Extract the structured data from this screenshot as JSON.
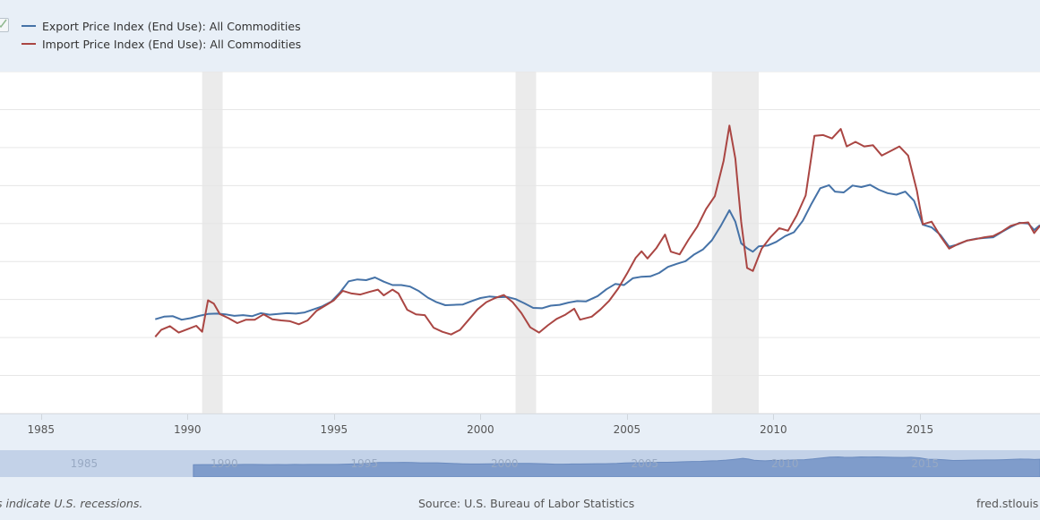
{
  "legend": {
    "toggle_icon": "checkbox-checked-icon",
    "items": [
      {
        "label": "Export Price Index (End Use): All Commodities",
        "color": "#4572a7"
      },
      {
        "label": "Import Price Index (End Use): All Commodities",
        "color": "#aa4643"
      }
    ]
  },
  "footer": {
    "note": "s indicate U.S. recessions.",
    "source": "Source: U.S. Bureau of Labor Statistics",
    "site": "fred.stlouis"
  },
  "navigator": {
    "ticks": [
      "1985",
      "1990",
      "1995",
      "2000",
      "2005",
      "2010",
      "2015"
    ],
    "fill_color": "#7f9ccb",
    "band_color": "#c3d2e8"
  },
  "chart_data": {
    "type": "line",
    "title": "",
    "xlabel": "",
    "ylabel": "",
    "x_ticks": [
      "1985",
      "1990",
      "1995",
      "2000",
      "2005",
      "2010",
      "2015"
    ],
    "xlim": [
      1983.6,
      2019.1
    ],
    "ylim": [
      70,
      160
    ],
    "y_gridlines": [
      70,
      80,
      90,
      100,
      110,
      120,
      130,
      140,
      150,
      160
    ],
    "grid": true,
    "legend_position": "top-left",
    "recessions": [
      [
        1990.5,
        1991.2
      ],
      [
        2001.2,
        2001.9
      ],
      [
        2007.9,
        2009.5
      ]
    ],
    "recession_color": "#ebebeb",
    "series": [
      {
        "name": "Export Price Index (End Use): All Commodities",
        "color": "#4572a7",
        "points": [
          [
            1988.9,
            94.8
          ],
          [
            1989.2,
            95.5
          ],
          [
            1989.5,
            95.6
          ],
          [
            1989.8,
            94.7
          ],
          [
            1990.1,
            95.1
          ],
          [
            1990.4,
            95.7
          ],
          [
            1990.7,
            96.2
          ],
          [
            1991.0,
            96.3
          ],
          [
            1991.3,
            96.1
          ],
          [
            1991.6,
            95.7
          ],
          [
            1991.9,
            95.9
          ],
          [
            1992.2,
            95.6
          ],
          [
            1992.5,
            96.4
          ],
          [
            1992.8,
            96.0
          ],
          [
            1993.1,
            96.2
          ],
          [
            1993.4,
            96.4
          ],
          [
            1993.7,
            96.3
          ],
          [
            1994.0,
            96.6
          ],
          [
            1994.3,
            97.4
          ],
          [
            1994.6,
            98.2
          ],
          [
            1994.9,
            99.4
          ],
          [
            1995.2,
            101.8
          ],
          [
            1995.5,
            104.8
          ],
          [
            1995.8,
            105.3
          ],
          [
            1996.1,
            105.1
          ],
          [
            1996.4,
            105.8
          ],
          [
            1996.7,
            104.7
          ],
          [
            1997.0,
            103.8
          ],
          [
            1997.3,
            103.8
          ],
          [
            1997.6,
            103.4
          ],
          [
            1997.9,
            102.2
          ],
          [
            1998.2,
            100.5
          ],
          [
            1998.5,
            99.3
          ],
          [
            1998.8,
            98.5
          ],
          [
            1999.1,
            98.6
          ],
          [
            1999.4,
            98.7
          ],
          [
            1999.7,
            99.6
          ],
          [
            2000.0,
            100.4
          ],
          [
            2000.3,
            100.8
          ],
          [
            2000.6,
            100.6
          ],
          [
            2000.9,
            100.7
          ],
          [
            2001.2,
            100.1
          ],
          [
            2001.5,
            99.0
          ],
          [
            2001.8,
            97.8
          ],
          [
            2002.1,
            97.7
          ],
          [
            2002.4,
            98.4
          ],
          [
            2002.7,
            98.6
          ],
          [
            2003.0,
            99.2
          ],
          [
            2003.3,
            99.6
          ],
          [
            2003.6,
            99.5
          ],
          [
            2004.0,
            100.9
          ],
          [
            2004.3,
            102.7
          ],
          [
            2004.6,
            104.1
          ],
          [
            2004.9,
            103.8
          ],
          [
            2005.2,
            105.6
          ],
          [
            2005.5,
            106.0
          ],
          [
            2005.8,
            106.1
          ],
          [
            2006.1,
            107.0
          ],
          [
            2006.4,
            108.6
          ],
          [
            2006.7,
            109.4
          ],
          [
            2007.0,
            110.1
          ],
          [
            2007.3,
            111.9
          ],
          [
            2007.6,
            113.2
          ],
          [
            2007.9,
            115.6
          ],
          [
            2008.2,
            119.3
          ],
          [
            2008.5,
            123.5
          ],
          [
            2008.7,
            120.5
          ],
          [
            2008.9,
            114.8
          ],
          [
            2009.1,
            113.5
          ],
          [
            2009.3,
            112.6
          ],
          [
            2009.5,
            114.0
          ],
          [
            2009.8,
            114.2
          ],
          [
            2010.1,
            115.2
          ],
          [
            2010.4,
            116.7
          ],
          [
            2010.7,
            117.7
          ],
          [
            2011.0,
            120.7
          ],
          [
            2011.3,
            125.2
          ],
          [
            2011.6,
            129.3
          ],
          [
            2011.9,
            130.1
          ],
          [
            2012.1,
            128.4
          ],
          [
            2012.4,
            128.2
          ],
          [
            2012.7,
            130.0
          ],
          [
            2013.0,
            129.6
          ],
          [
            2013.3,
            130.2
          ],
          [
            2013.6,
            128.9
          ],
          [
            2013.9,
            128.0
          ],
          [
            2014.2,
            127.6
          ],
          [
            2014.5,
            128.4
          ],
          [
            2014.8,
            126.0
          ],
          [
            2015.1,
            119.7
          ],
          [
            2015.4,
            119.0
          ],
          [
            2015.7,
            117.0
          ],
          [
            2016.0,
            113.9
          ],
          [
            2016.3,
            114.5
          ],
          [
            2016.6,
            115.5
          ],
          [
            2016.9,
            116.0
          ],
          [
            2017.2,
            116.2
          ],
          [
            2017.5,
            116.4
          ],
          [
            2017.8,
            117.8
          ],
          [
            2018.1,
            119.1
          ],
          [
            2018.4,
            120.2
          ],
          [
            2018.7,
            120.0
          ],
          [
            2018.9,
            118.3
          ],
          [
            2019.1,
            119.6
          ]
        ]
      },
      {
        "name": "Import Price Index (End Use): All Commodities",
        "color": "#aa4643",
        "points": [
          [
            1988.9,
            90.2
          ],
          [
            1989.1,
            92.0
          ],
          [
            1989.4,
            93.0
          ],
          [
            1989.7,
            91.3
          ],
          [
            1990.0,
            92.2
          ],
          [
            1990.3,
            93.1
          ],
          [
            1990.5,
            91.5
          ],
          [
            1990.7,
            99.8
          ],
          [
            1990.9,
            98.9
          ],
          [
            1991.1,
            96.2
          ],
          [
            1991.4,
            95.1
          ],
          [
            1991.7,
            93.8
          ],
          [
            1992.0,
            94.7
          ],
          [
            1992.3,
            94.7
          ],
          [
            1992.6,
            96.1
          ],
          [
            1992.9,
            94.8
          ],
          [
            1993.2,
            94.5
          ],
          [
            1993.5,
            94.3
          ],
          [
            1993.8,
            93.5
          ],
          [
            1994.1,
            94.5
          ],
          [
            1994.4,
            97.0
          ],
          [
            1994.7,
            98.4
          ],
          [
            1995.0,
            99.8
          ],
          [
            1995.3,
            102.3
          ],
          [
            1995.6,
            101.6
          ],
          [
            1995.9,
            101.3
          ],
          [
            1996.2,
            102.0
          ],
          [
            1996.5,
            102.6
          ],
          [
            1996.7,
            101.1
          ],
          [
            1997.0,
            102.6
          ],
          [
            1997.2,
            101.6
          ],
          [
            1997.5,
            97.3
          ],
          [
            1997.8,
            96.1
          ],
          [
            1998.1,
            95.9
          ],
          [
            1998.4,
            92.6
          ],
          [
            1998.7,
            91.5
          ],
          [
            1999.0,
            90.8
          ],
          [
            1999.3,
            92.0
          ],
          [
            1999.6,
            94.7
          ],
          [
            1999.9,
            97.4
          ],
          [
            2000.2,
            99.3
          ],
          [
            2000.5,
            100.4
          ],
          [
            2000.8,
            101.2
          ],
          [
            2001.1,
            99.3
          ],
          [
            2001.4,
            96.4
          ],
          [
            2001.7,
            92.7
          ],
          [
            2002.0,
            91.3
          ],
          [
            2002.3,
            93.2
          ],
          [
            2002.6,
            94.9
          ],
          [
            2002.9,
            96.0
          ],
          [
            2003.2,
            97.6
          ],
          [
            2003.4,
            94.7
          ],
          [
            2003.8,
            95.5
          ],
          [
            2004.1,
            97.4
          ],
          [
            2004.4,
            99.7
          ],
          [
            2004.7,
            102.9
          ],
          [
            2005.0,
            106.8
          ],
          [
            2005.3,
            111.0
          ],
          [
            2005.5,
            112.7
          ],
          [
            2005.7,
            110.8
          ],
          [
            2006.0,
            113.5
          ],
          [
            2006.3,
            117.1
          ],
          [
            2006.5,
            112.6
          ],
          [
            2006.8,
            111.9
          ],
          [
            2007.1,
            115.7
          ],
          [
            2007.4,
            119.2
          ],
          [
            2007.7,
            123.8
          ],
          [
            2008.0,
            127.2
          ],
          [
            2008.3,
            136.5
          ],
          [
            2008.5,
            145.8
          ],
          [
            2008.7,
            137.1
          ],
          [
            2008.9,
            120.5
          ],
          [
            2009.1,
            108.3
          ],
          [
            2009.3,
            107.5
          ],
          [
            2009.6,
            113.4
          ],
          [
            2009.9,
            116.4
          ],
          [
            2010.2,
            118.8
          ],
          [
            2010.5,
            118.1
          ],
          [
            2010.8,
            122.2
          ],
          [
            2011.1,
            127.4
          ],
          [
            2011.4,
            143.1
          ],
          [
            2011.7,
            143.3
          ],
          [
            2012.0,
            142.4
          ],
          [
            2012.3,
            144.9
          ],
          [
            2012.5,
            140.3
          ],
          [
            2012.8,
            141.5
          ],
          [
            2013.1,
            140.3
          ],
          [
            2013.4,
            140.6
          ],
          [
            2013.7,
            137.9
          ],
          [
            2014.0,
            139.1
          ],
          [
            2014.3,
            140.3
          ],
          [
            2014.6,
            137.9
          ],
          [
            2014.9,
            128.6
          ],
          [
            2015.1,
            119.8
          ],
          [
            2015.4,
            120.5
          ],
          [
            2015.7,
            116.7
          ],
          [
            2016.0,
            113.4
          ],
          [
            2016.3,
            114.6
          ],
          [
            2016.6,
            115.5
          ],
          [
            2016.9,
            115.9
          ],
          [
            2017.2,
            116.4
          ],
          [
            2017.5,
            116.7
          ],
          [
            2017.8,
            117.9
          ],
          [
            2018.1,
            119.4
          ],
          [
            2018.4,
            120.1
          ],
          [
            2018.7,
            120.3
          ],
          [
            2018.9,
            117.5
          ],
          [
            2019.1,
            119.4
          ]
        ]
      }
    ]
  }
}
